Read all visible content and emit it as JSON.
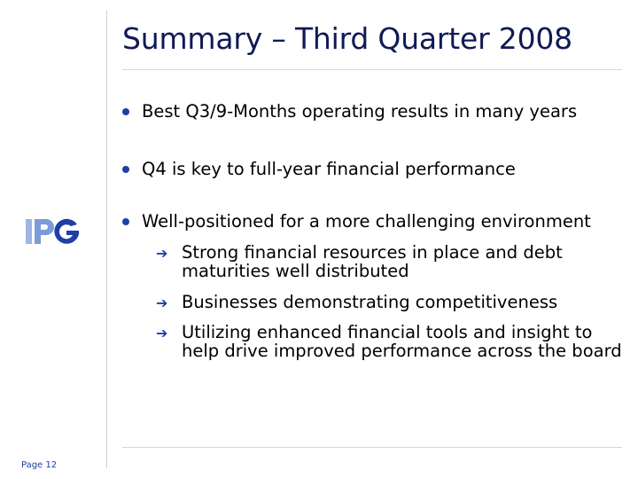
{
  "slide": {
    "title": "Summary – Third Quarter 2008",
    "page_label": "Page 12"
  },
  "logo": {
    "text": "IPG",
    "colors": {
      "I": "#8fa8d8",
      "P": "#6f94d6",
      "G": "#1f3fa6"
    }
  },
  "bullets": [
    {
      "text": "Best Q3/9-Months operating results in many years"
    },
    {
      "text": "Q4 is key to full-year financial performance"
    },
    {
      "text": "Well-positioned for a more challenging environment"
    }
  ],
  "sub_bullets": [
    {
      "text": "Strong financial resources in place and debt maturities well distributed"
    },
    {
      "text": "Businesses demonstrating competitiveness"
    },
    {
      "text": "Utilizing enhanced financial tools and insight to help drive improved performance across the board"
    }
  ],
  "colors": {
    "accent": "#1f3fa6",
    "title": "#0f1a55"
  }
}
